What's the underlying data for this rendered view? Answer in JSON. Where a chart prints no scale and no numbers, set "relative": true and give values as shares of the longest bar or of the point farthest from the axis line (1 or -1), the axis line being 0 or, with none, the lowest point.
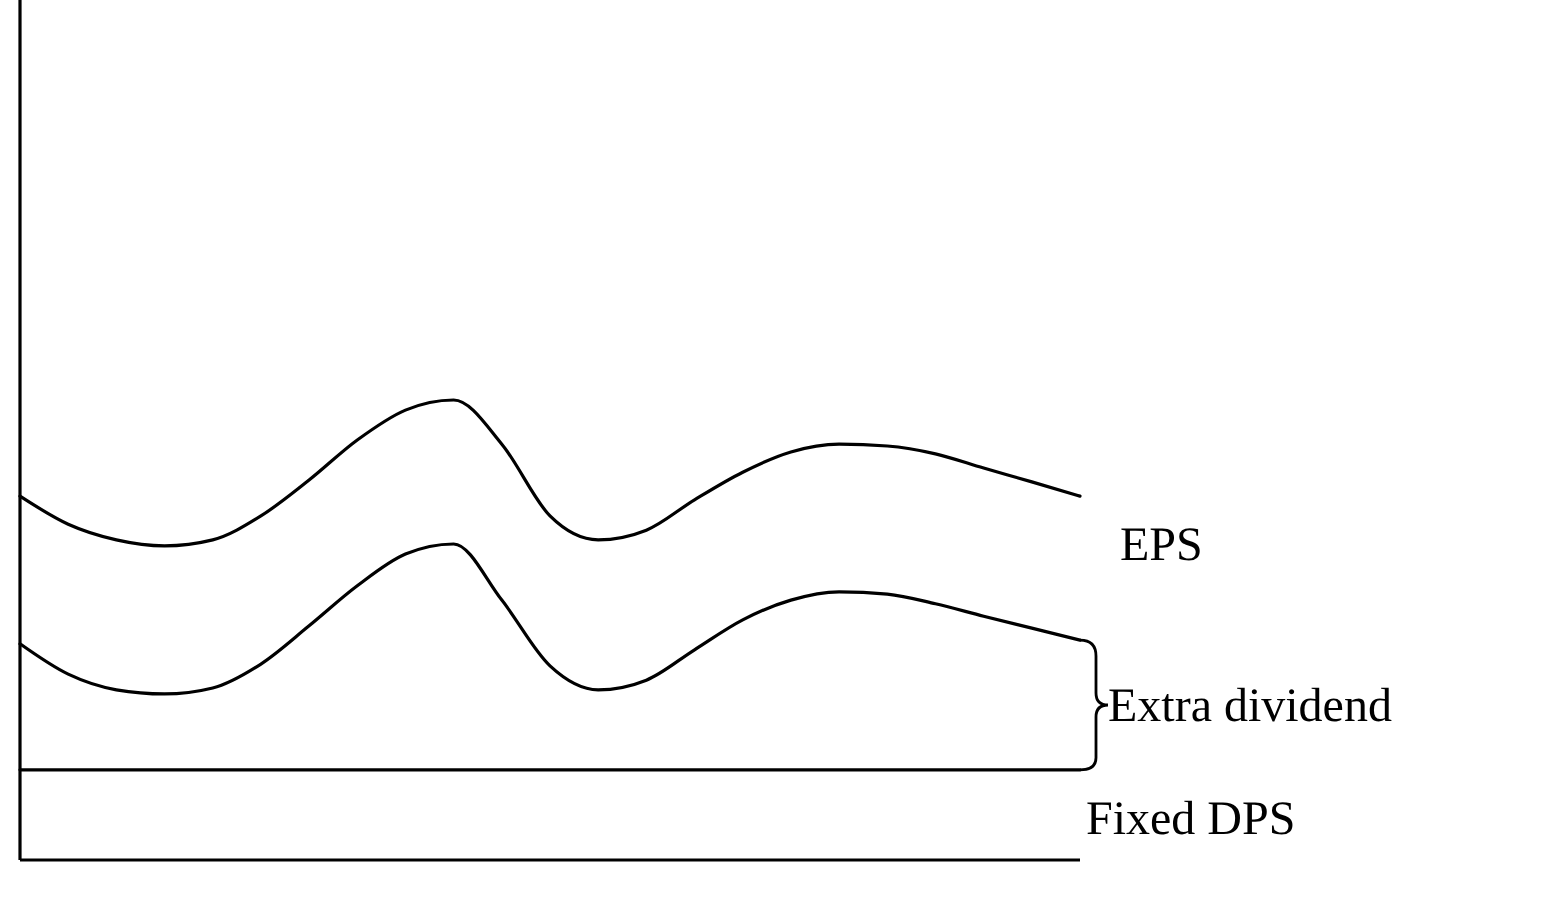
{
  "chart_data": {
    "type": "line",
    "relative": true,
    "categories": [
      null,
      null,
      null,
      null,
      null,
      null,
      null,
      null,
      null,
      null,
      null,
      null,
      null,
      null,
      null,
      null,
      null,
      null,
      null,
      null,
      null,
      null,
      null
    ],
    "series": [
      {
        "name": "EPS",
        "color": "#000000",
        "values": [
          0.791,
          0.73,
          0.696,
          0.683,
          0.696,
          0.748,
          0.826,
          0.913,
          0.978,
          1,
          0.904,
          0.748,
          0.696,
          0.717,
          0.783,
          0.843,
          0.887,
          0.904,
          0.9,
          0.883,
          0.852,
          0.822,
          0.791
        ]
      },
      {
        "color": "#000000",
        "values": [
          0.47,
          0.404,
          0.37,
          0.361,
          0.374,
          0.426,
          0.509,
          0.596,
          0.665,
          0.687,
          0.565,
          0.422,
          0.37,
          0.391,
          0.457,
          0.522,
          0.565,
          0.583,
          0.578,
          0.557,
          0.53,
          0.504,
          0.478
        ]
      },
      {
        "name": "Fixed DPS",
        "color": "#000000",
        "values": [
          0.196,
          0.196,
          0.196,
          0.196,
          0.196,
          0.196,
          0.196,
          0.196,
          0.196,
          0.196,
          0.196,
          0.196,
          0.196,
          0.196,
          0.196,
          0.196,
          0.196,
          0.196,
          0.196,
          0.196,
          0.196,
          0.196,
          0.196
        ]
      }
    ],
    "annotations": [
      "Extra dividend"
    ],
    "marker": "none",
    "line_style": "solid"
  }
}
